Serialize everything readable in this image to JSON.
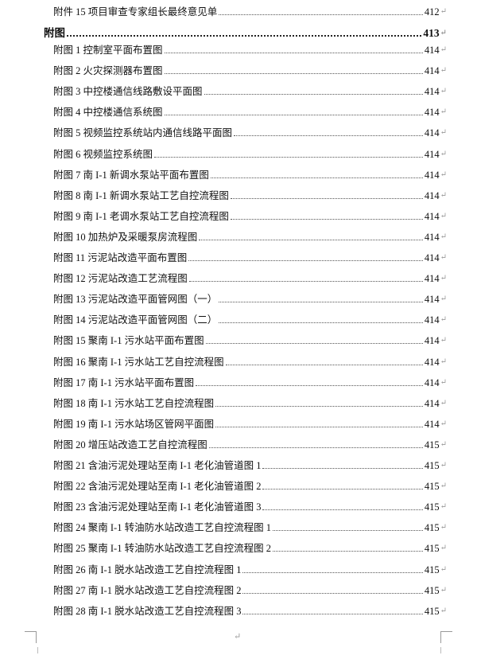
{
  "toc": {
    "paragraph_mark": "↵",
    "pre_entry": {
      "title": "附件 15  项目审查专家组长最终意见单",
      "page": "412"
    },
    "section": {
      "title": "附图",
      "page": "413"
    },
    "entries": [
      {
        "title": "附图 1  控制室平面布置图",
        "page": "414"
      },
      {
        "title": "附图 2  火灾探测器布置图",
        "page": "414"
      },
      {
        "title": "附图 3  中控楼通信线路敷设平面图",
        "page": "414"
      },
      {
        "title": "附图 4  中控楼通信系统图",
        "page": "414"
      },
      {
        "title": "附图 5  视频监控系统站内通信线路平面图",
        "page": "414"
      },
      {
        "title": "附图 6  视频监控系统图",
        "page": "414"
      },
      {
        "title": "附图 7  南 I-1 新调水泵站平面布置图",
        "page": "414"
      },
      {
        "title": "附图 8  南 I-1 新调水泵站工艺自控流程图",
        "page": "414"
      },
      {
        "title": "附图 9  南 I-1 老调水泵站工艺自控流程图",
        "page": "414"
      },
      {
        "title": "附图 10  加热炉及采暖泵房流程图",
        "page": "414"
      },
      {
        "title": "附图 11  污泥站改造平面布置图",
        "page": "414"
      },
      {
        "title": "附图 12  污泥站改造工艺流程图",
        "page": "414"
      },
      {
        "title": "附图 13  污泥站改造平面管网图（一）",
        "page": "414"
      },
      {
        "title": "附图 14  污泥站改造平面管网图（二）",
        "page": "414"
      },
      {
        "title": "附图 15  聚南 I-1 污水站平面布置图",
        "page": "414"
      },
      {
        "title": "附图 16  聚南 I-1 污水站工艺自控流程图",
        "page": "414"
      },
      {
        "title": "附图 17  南 I-1 污水站平面布置图",
        "page": "414"
      },
      {
        "title": "附图 18  南 I-1 污水站工艺自控流程图",
        "page": "414"
      },
      {
        "title": "附图 19  南 I-1 污水站场区管网平面图",
        "page": "414"
      },
      {
        "title": "附图 20  增压站改造工艺自控流程图",
        "page": "415"
      },
      {
        "title": "附图 21  含油污泥处理站至南 I-1 老化油管道图 1",
        "page": "415"
      },
      {
        "title": "附图 22  含油污泥处理站至南 I-1 老化油管道图 2",
        "page": "415"
      },
      {
        "title": "附图 23  含油污泥处理站至南 I-1 老化油管道图 3",
        "page": "415"
      },
      {
        "title": "附图 24  聚南 I-1 转油防水站改造工艺自控流程图 1",
        "page": "415"
      },
      {
        "title": "附图 25  聚南 I-1 转油防水站改造工艺自控流程图 2",
        "page": "415"
      },
      {
        "title": "附图 26  南 I-1 脱水站改造工艺自控流程图 1",
        "page": "415"
      },
      {
        "title": "附图 27  南 I-1 脱水站改造工艺自控流程图 2",
        "page": "415"
      },
      {
        "title": "附图 28  南 I-1 脱水站改造工艺自控流程图 3",
        "page": "415"
      }
    ]
  }
}
